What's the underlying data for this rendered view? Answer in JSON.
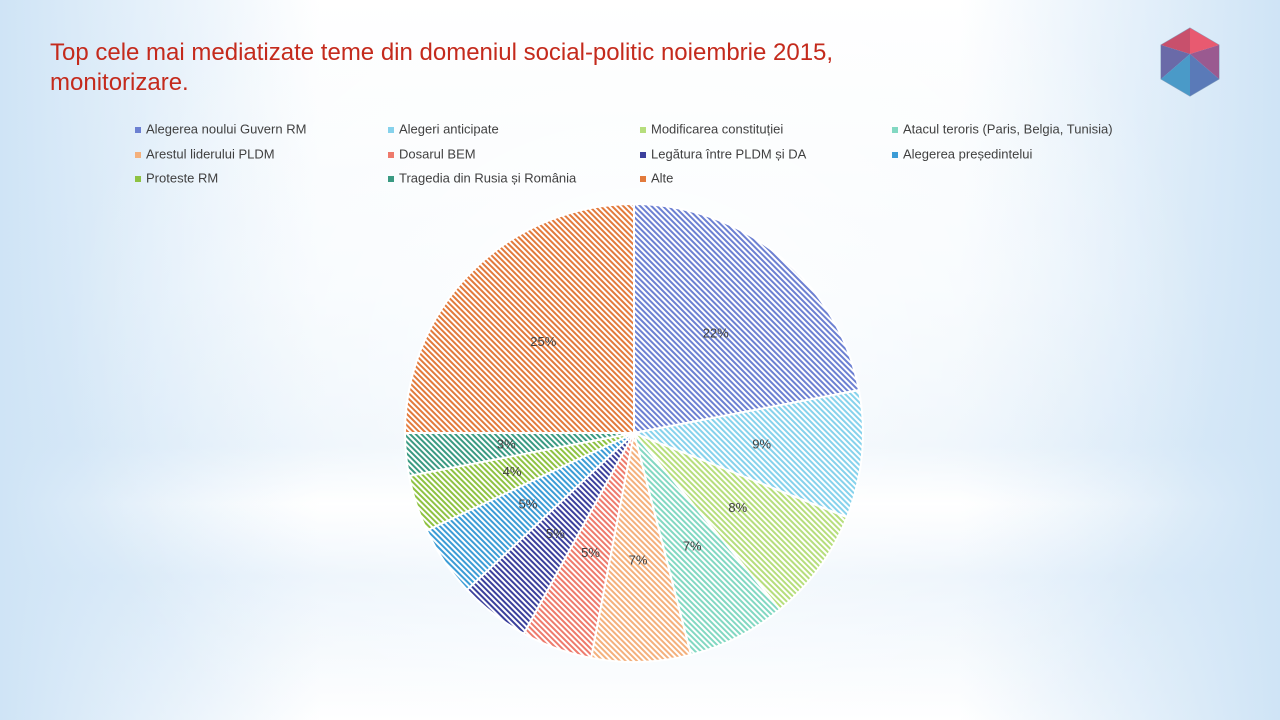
{
  "chart_data": {
    "type": "pie",
    "title": "Top cele mai mediatizate teme din domeniul social-politic noiembrie 2015, monitorizare.",
    "categories": [
      "Alegerea noului Guvern RM",
      "Alegeri anticipate",
      "Modificarea constituției",
      "Atacul teroris (Paris, Belgia, Tunisia)",
      "Arestul liderului PLDM",
      "Dosarul BEM",
      "Legătura între PLDM și DA",
      "Alegerea președintelui",
      "Proteste RM",
      "Tragedia din Rusia și România",
      "Alte"
    ],
    "values": [
      22,
      9,
      8,
      7,
      7,
      5,
      5,
      5,
      4,
      3,
      25
    ],
    "value_labels": [
      "22%",
      "9%",
      "8%",
      "7%",
      "7%",
      "5%",
      "5%",
      "5%",
      "4%",
      "3%",
      "25%"
    ],
    "colors": [
      "#6c80d2",
      "#86d2ec",
      "#b6de7c",
      "#82d8c2",
      "#f4b07c",
      "#ee7a6c",
      "#3b409c",
      "#3c9cd6",
      "#8ec242",
      "#3a9a82",
      "#e27a3c"
    ]
  }
}
